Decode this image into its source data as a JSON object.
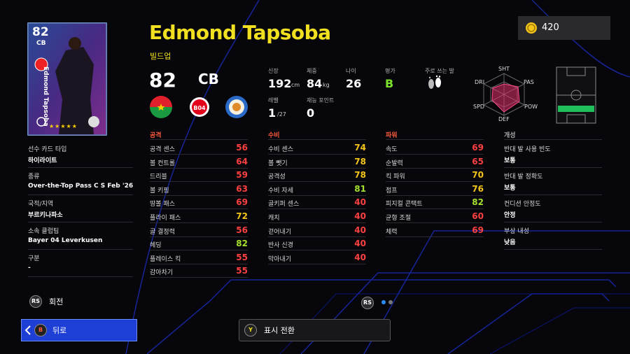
{
  "coins": 420,
  "card": {
    "rating": 82,
    "position": "CB",
    "name": "Edmond Tapsoba",
    "stars": "★★★★★"
  },
  "player": {
    "name": "Edmond Tapsoba",
    "playstyle": "빌드업",
    "rating": 82,
    "position": "CB"
  },
  "profile": [
    {
      "label": "신장",
      "value": 192,
      "unit": "cm"
    },
    {
      "label": "체중",
      "value": 84,
      "unit": "kg"
    },
    {
      "label": "나이",
      "value": 26
    },
    {
      "label": "평가",
      "value": "B"
    },
    {
      "label": "주로 쓰는 발"
    },
    {
      "label": "레벨",
      "value": 1,
      "unit": "/27"
    },
    {
      "label": "재능 포인트",
      "value": 0
    }
  ],
  "radar": {
    "labels": [
      "SHT",
      "PAS",
      "POW",
      "DEF",
      "SPD",
      "DRI"
    ]
  },
  "info": [
    {
      "label": "선수 카드 타입",
      "value": "하이라이트"
    },
    {
      "label": "종류",
      "value": "Over-the-Top Pass C S Feb '26"
    },
    {
      "label": "국적/지역",
      "value": "부르키나파소"
    },
    {
      "label": "소속 클럽팀",
      "value": "Bayer 04 Leverkusen"
    },
    {
      "label": "구분",
      "value": "-"
    }
  ],
  "stat_groups": [
    {
      "title": "공격",
      "color": "#ff5a3c",
      "stats": [
        {
          "name": "공격 센스",
          "value": 56
        },
        {
          "name": "볼 컨트롤",
          "value": 64
        },
        {
          "name": "드리블",
          "value": 59
        },
        {
          "name": "볼 키핑",
          "value": 63
        },
        {
          "name": "땅볼 패스",
          "value": 69
        },
        {
          "name": "플라이 패스",
          "value": 72
        },
        {
          "name": "골 결정력",
          "value": 56
        },
        {
          "name": "헤딩",
          "value": 82
        },
        {
          "name": "플레이스 킥",
          "value": 55
        },
        {
          "name": "감아차기",
          "value": 55
        }
      ]
    },
    {
      "title": "수비",
      "color": "#ff5a3c",
      "stats": [
        {
          "name": "수비 센스",
          "value": 74
        },
        {
          "name": "볼 뺏기",
          "value": 78
        },
        {
          "name": "공격성",
          "value": 78
        },
        {
          "name": "수비 자세",
          "value": 81
        },
        {
          "name": "골키퍼 센스",
          "value": 40
        },
        {
          "name": "캐치",
          "value": 40
        },
        {
          "name": "걷어내기",
          "value": 40
        },
        {
          "name": "반사 신경",
          "value": 40
        },
        {
          "name": "막아내기",
          "value": 40
        }
      ]
    },
    {
      "title": "파워",
      "color": "#ff5a3c",
      "stats": [
        {
          "name": "속도",
          "value": 69
        },
        {
          "name": "순발력",
          "value": 65
        },
        {
          "name": "킥 파워",
          "value": 70
        },
        {
          "name": "점프",
          "value": 76
        },
        {
          "name": "피지컬 콘택트",
          "value": 82
        },
        {
          "name": "균형 조절",
          "value": 60
        },
        {
          "name": "체력",
          "value": 69
        }
      ]
    }
  ],
  "personality": {
    "title": "개성",
    "items": [
      {
        "label": "반대 발 사용 빈도",
        "value": "보통"
      },
      {
        "label": "반대 발 정확도",
        "value": "보통"
      },
      {
        "label": "컨디션 안정도",
        "value": "안정"
      },
      {
        "label": "부상 내성",
        "value": "낮음"
      }
    ]
  },
  "footer": {
    "rotate_key": "RS",
    "rotate": "회전",
    "page_key": "RS",
    "back_key": "B",
    "back": "뒤로",
    "toggle_key": "Y",
    "toggle": "표시 전환"
  }
}
